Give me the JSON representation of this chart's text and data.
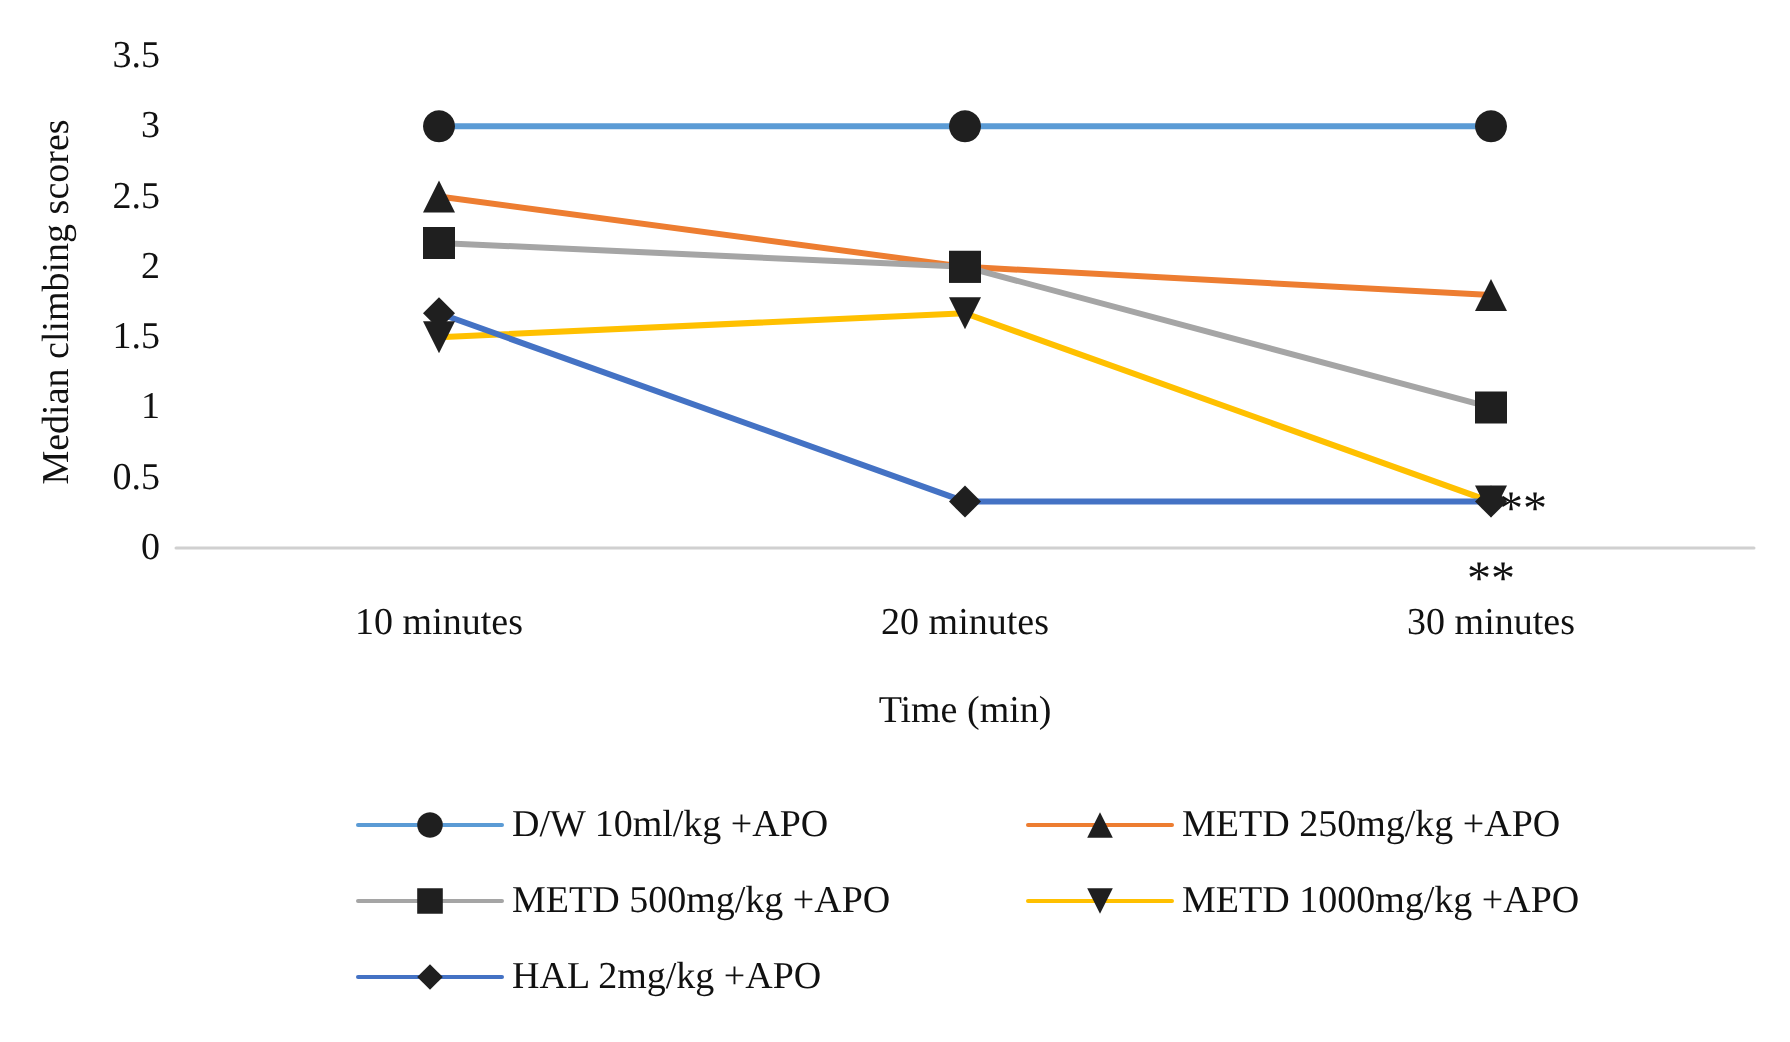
{
  "chart_data": {
    "type": "line",
    "xlabel": "Time (min)",
    "ylabel": "Median climbing scores",
    "categories": [
      "10 minutes",
      "20 minutes",
      "30 minutes"
    ],
    "series": [
      {
        "name": "D/W 10ml/kg +APO",
        "color": "#5b9bd5",
        "marker": "circle",
        "values": [
          3,
          3,
          3
        ]
      },
      {
        "name": "METD 250mg/kg +APO",
        "color": "#ed7d31",
        "marker": "triangle",
        "values": [
          2.5,
          2.0,
          1.8
        ]
      },
      {
        "name": "METD 500mg/kg +APO",
        "color": "#a5a5a5",
        "marker": "square",
        "values": [
          2.17,
          2.0,
          1.0
        ]
      },
      {
        "name": "METD 1000mg/kg +APO",
        "color": "#ffc000",
        "marker": "triangle-down",
        "values": [
          1.5,
          1.67,
          0.33
        ]
      },
      {
        "name": "HAL 2mg/kg +APO",
        "color": "#4472c4",
        "marker": "diamond",
        "values": [
          1.67,
          0.33,
          0.33
        ]
      }
    ],
    "ylim": [
      0,
      3.5
    ],
    "yticks": [
      0,
      0.5,
      1,
      1.5,
      2,
      2.5,
      3,
      3.5
    ],
    "grid": false,
    "legend": "bottom",
    "annotations": [
      {
        "text": "**",
        "x": "30 minutes",
        "y": 0.33
      },
      "**"
    ]
  }
}
